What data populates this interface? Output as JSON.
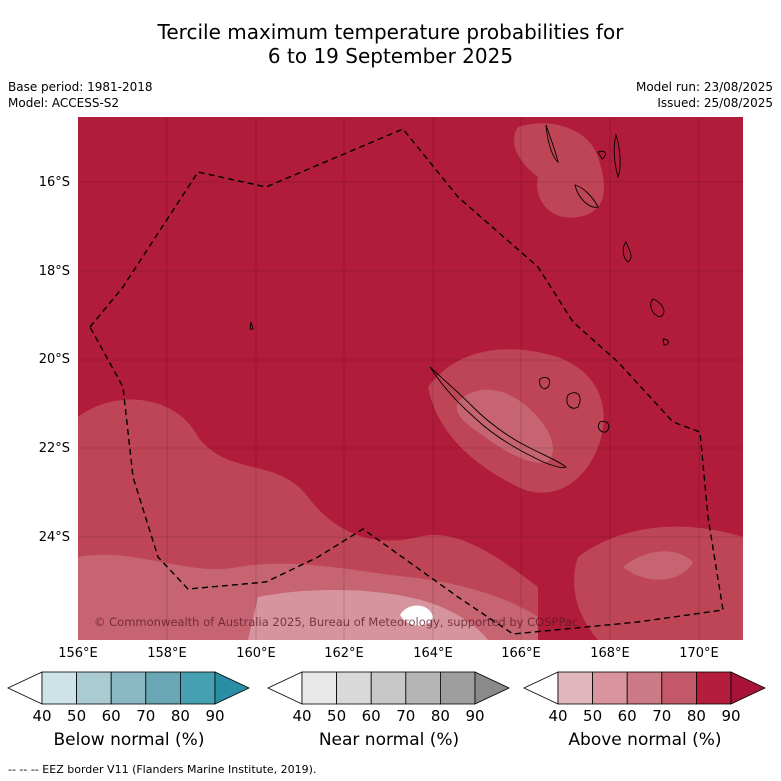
{
  "title_line1": "Tercile maximum temperature probabilities for",
  "title_line2": "6 to 19 September 2025",
  "meta": {
    "base_period": "Base period: 1981-2018",
    "model": "Model: ACCESS-S2",
    "model_run": "Model run: 23/08/2025",
    "issued": "Issued: 25/08/2025"
  },
  "map": {
    "lat_ticks": [
      "16°S",
      "18°S",
      "20°S",
      "22°S",
      "24°S"
    ],
    "lon_ticks": [
      "156°E",
      "158°E",
      "160°E",
      "162°E",
      "164°E",
      "166°E",
      "168°E",
      "170°E"
    ],
    "copyright": "© Commonwealth of Australia 2025, Bureau of Meteorology, supported by COSPPac",
    "background_category": "Above normal 80-90%"
  },
  "colorbars": [
    {
      "label": "Below normal (%)",
      "colors": [
        "#cde3e8",
        "#a9cbd1",
        "#8ab8c2",
        "#6aa6b3",
        "#45a0b1",
        "#2a8ea3"
      ]
    },
    {
      "label": "Near normal (%)",
      "colors": [
        "#e8e8e8",
        "#d9d9d9",
        "#c8c8c8",
        "#b4b4b4",
        "#9e9e9e",
        "#8a8a8a"
      ]
    },
    {
      "label": "Above normal (%)",
      "colors": [
        "#e0b6bf",
        "#d8949f",
        "#cc7a86",
        "#c25868",
        "#b41e3c",
        "#a8123a"
      ]
    }
  ],
  "colorbar_ticks": [
    "40",
    "50",
    "60",
    "70",
    "80",
    "90"
  ],
  "footer": "--  --  -- EEZ border V11 (Flanders Marine Institute, 2019)."
}
